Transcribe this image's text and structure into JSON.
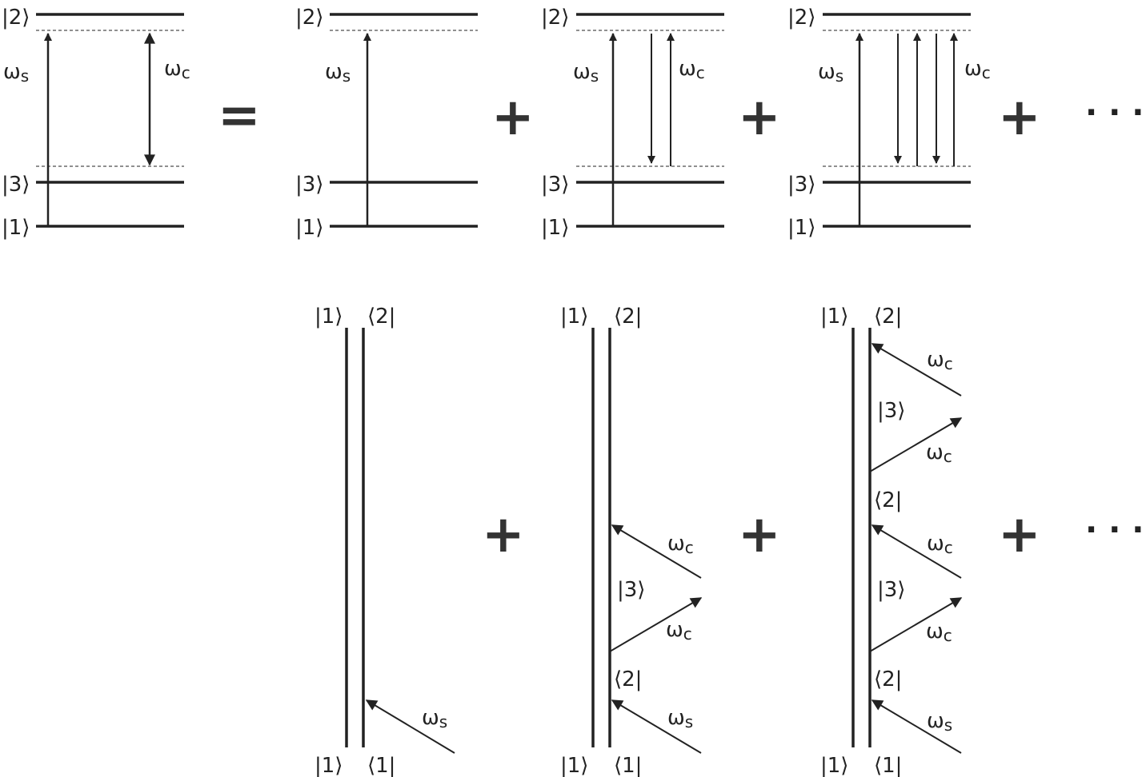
{
  "kets": {
    "k1": "|1⟩",
    "k2": "|2⟩",
    "k3": "|3⟩"
  },
  "bras": {
    "b1": "⟨1|",
    "b2": "⟨2|"
  },
  "labels": {
    "omega": "ω",
    "s": "s",
    "c": "c"
  },
  "operators": {
    "equals": "=",
    "plus": "+",
    "ellipsis": "· · ·"
  },
  "colors": {
    "ink": "#222222"
  }
}
